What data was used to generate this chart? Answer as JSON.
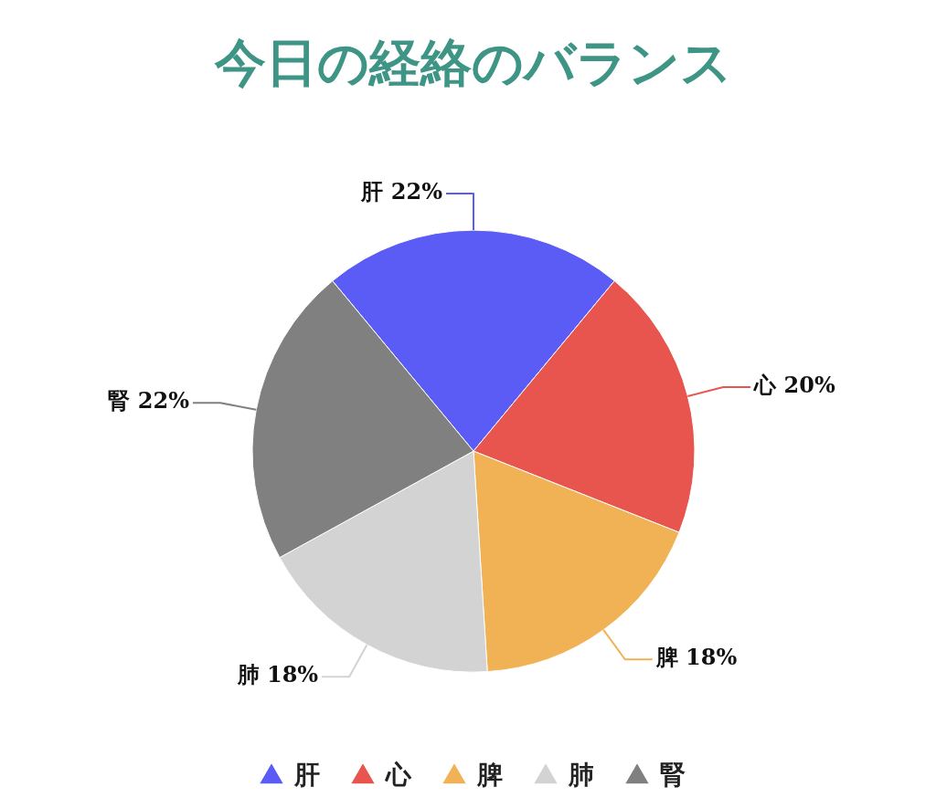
{
  "chart_data": {
    "type": "pie",
    "title": "今日の経絡のバランス",
    "categories": [
      "肝",
      "心",
      "脾",
      "肺",
      "腎"
    ],
    "values": [
      22,
      20,
      18,
      18,
      22
    ],
    "value_labels": [
      "22%",
      "20%",
      "18%",
      "18%",
      "22%"
    ],
    "colors": [
      "#5b5bf5",
      "#e8554e",
      "#f0b254",
      "#d3d3d3",
      "#808080"
    ],
    "legend": "bottom",
    "marker": "triangle"
  }
}
